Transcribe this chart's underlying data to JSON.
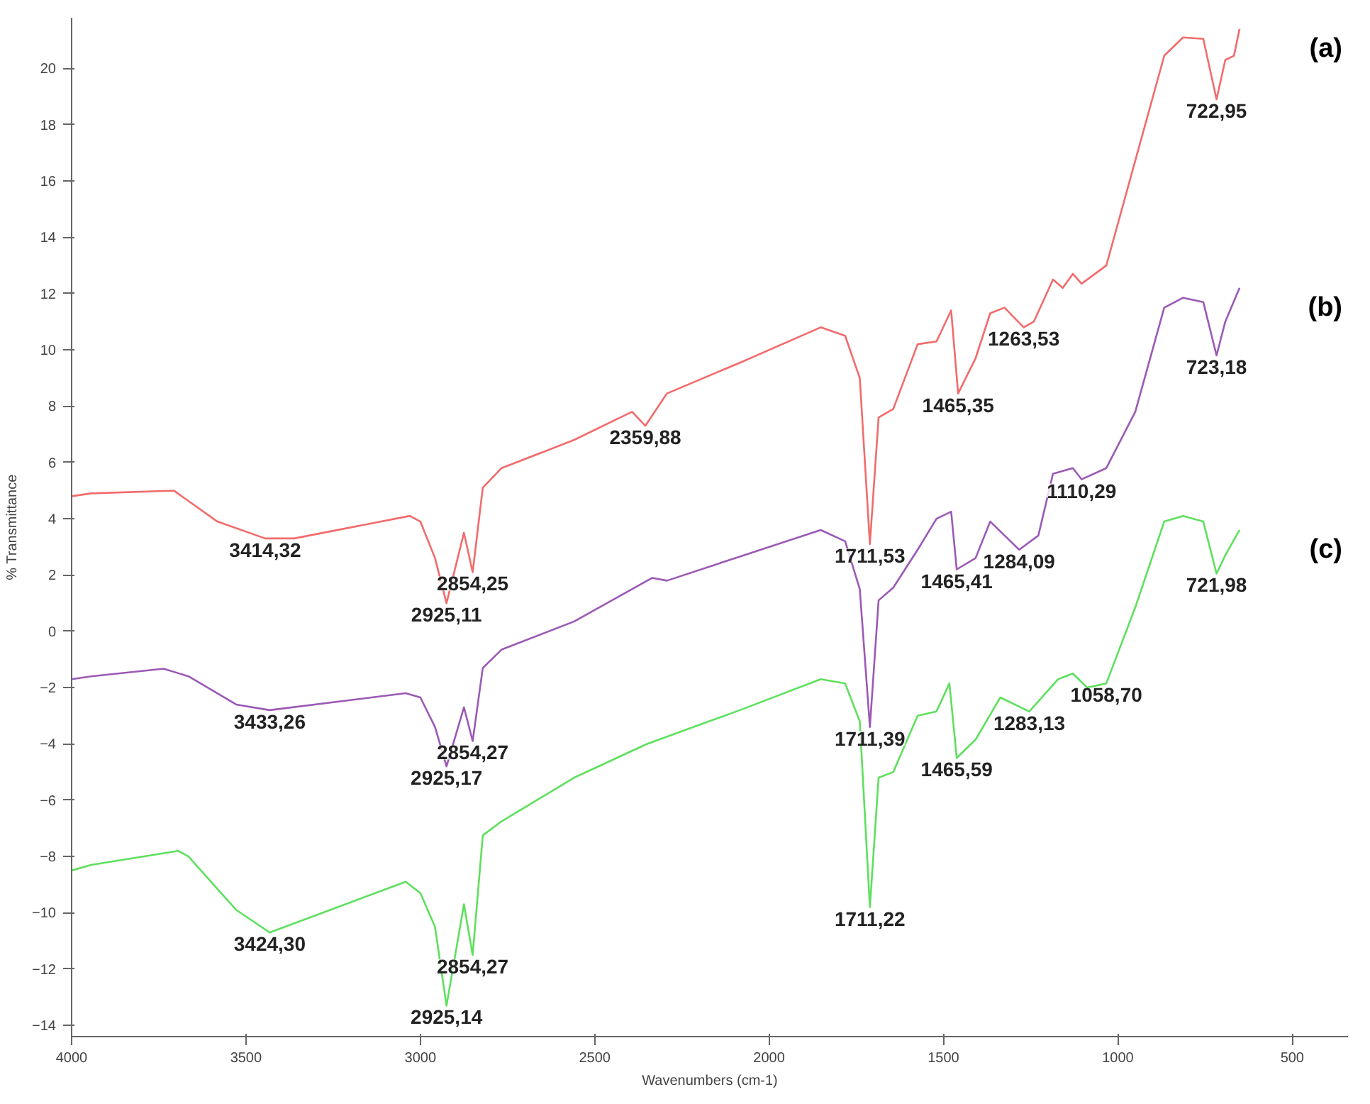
{
  "chart_data": {
    "type": "line",
    "xlabel": "Wavenumbers (cm-1)",
    "ylabel": "% Transmittance",
    "xlim": [
      4000,
      340
    ],
    "ylim": [
      -14.4,
      21.8
    ],
    "xticks": [
      4000,
      3500,
      3000,
      2500,
      2000,
      1500,
      1000,
      500
    ],
    "yticks": [
      -14,
      -12,
      -10,
      -8,
      -6,
      -4,
      -2,
      0,
      2,
      4,
      6,
      8,
      10,
      12,
      14,
      16,
      18,
      20
    ],
    "grid": false,
    "legend": false,
    "line_style": "solid",
    "series": [
      {
        "name": "(a)",
        "color": "#f26b6b",
        "x": [
          4000,
          3944,
          3707,
          3582,
          3445,
          3362,
          3030,
          3000,
          2958,
          2925,
          2875,
          2850,
          2821,
          2767,
          2559,
          2393,
          2355,
          2293,
          2073,
          1852,
          1782,
          1740,
          1711,
          1686,
          1644,
          1574,
          1520,
          1478,
          1458,
          1408,
          1366,
          1325,
          1270,
          1241,
          1186,
          1158,
          1129,
          1104,
          1033,
          867,
          813,
          755,
          717,
          692,
          667,
          651
        ],
        "values": [
          4.8,
          4.9,
          5.0,
          3.9,
          3.3,
          3.3,
          4.1,
          3.9,
          2.6,
          1.0,
          3.5,
          2.1,
          5.1,
          5.8,
          6.8,
          7.8,
          7.3,
          8.45,
          9.6,
          10.8,
          10.5,
          9.0,
          3.1,
          7.6,
          7.9,
          10.2,
          10.3,
          11.4,
          8.45,
          9.7,
          11.3,
          11.5,
          10.8,
          11.0,
          12.5,
          12.2,
          12.7,
          12.35,
          13.0,
          20.45,
          21.1,
          21.05,
          18.9,
          20.3,
          20.45,
          21.4
        ]
      },
      {
        "name": "(b)",
        "color": "#9b59b6",
        "x": [
          4000,
          3944,
          3736,
          3665,
          3528,
          3432,
          3042,
          3000,
          2958,
          2925,
          2875,
          2850,
          2821,
          2767,
          2559,
          2364,
          2335,
          2293,
          2073,
          1852,
          1782,
          1740,
          1711,
          1686,
          1644,
          1574,
          1520,
          1478,
          1462,
          1408,
          1366,
          1283,
          1228,
          1186,
          1129,
          1104,
          1033,
          950,
          867,
          813,
          755,
          717,
          692,
          651
        ],
        "values": [
          -1.7,
          -1.6,
          -1.33,
          -1.6,
          -2.6,
          -2.8,
          -2.2,
          -2.35,
          -3.4,
          -4.8,
          -2.7,
          -3.9,
          -1.3,
          -0.65,
          0.35,
          1.7,
          1.9,
          1.8,
          2.7,
          3.6,
          3.2,
          1.5,
          -3.4,
          1.1,
          1.55,
          2.9,
          4.0,
          4.25,
          2.2,
          2.6,
          3.9,
          2.9,
          3.4,
          5.6,
          5.8,
          5.4,
          5.8,
          7.8,
          11.5,
          11.85,
          11.7,
          9.8,
          11.0,
          12.2
        ]
      },
      {
        "name": "(c)",
        "color": "#5ee05e",
        "x": [
          4000,
          3944,
          3694,
          3665,
          3528,
          3432,
          3042,
          3000,
          2958,
          2925,
          2875,
          2850,
          2821,
          2767,
          2559,
          2350,
          2073,
          1852,
          1782,
          1740,
          1711,
          1686,
          1644,
          1574,
          1520,
          1483,
          1462,
          1408,
          1337,
          1254,
          1171,
          1129,
          1088,
          1033,
          950,
          867,
          813,
          755,
          717,
          692,
          651
        ],
        "values": [
          -8.5,
          -8.3,
          -7.8,
          -8.0,
          -9.9,
          -10.7,
          -8.9,
          -9.3,
          -10.5,
          -13.3,
          -9.7,
          -11.5,
          -7.25,
          -6.75,
          -5.2,
          -4.0,
          -2.75,
          -1.7,
          -1.85,
          -3.2,
          -9.8,
          -5.2,
          -5.0,
          -3.0,
          -2.85,
          -1.85,
          -4.5,
          -3.85,
          -2.35,
          -2.85,
          -1.7,
          -1.5,
          -2.0,
          -1.85,
          0.85,
          3.9,
          4.1,
          3.9,
          2.05,
          2.7,
          3.6
        ]
      }
    ],
    "annotations": [
      {
        "text": "3414,32",
        "x": 3445,
        "y": 3.3
      },
      {
        "text": "2925,11",
        "x": 2925,
        "y": 1.0
      },
      {
        "text": "2854,25",
        "x": 2850,
        "y": 2.1
      },
      {
        "text": "2359,88",
        "x": 2355,
        "y": 7.3
      },
      {
        "text": "1711,53",
        "x": 1711,
        "y": 3.1
      },
      {
        "text": "1465,35",
        "x": 1458,
        "y": 8.45
      },
      {
        "text": "1263,53",
        "x": 1270,
        "y": 10.8
      },
      {
        "text": "722,95",
        "x": 717,
        "y": 18.9
      },
      {
        "text": "3433,26",
        "x": 3432,
        "y": -2.8
      },
      {
        "text": "2925,17",
        "x": 2925,
        "y": -4.8
      },
      {
        "text": "2854,27",
        "x": 2850,
        "y": -3.9
      },
      {
        "text": "1711,39",
        "x": 1711,
        "y": -3.4
      },
      {
        "text": "1465,41",
        "x": 1462,
        "y": 2.2
      },
      {
        "text": "1284,09",
        "x": 1283,
        "y": 2.9
      },
      {
        "text": "1110,29",
        "x": 1104,
        "y": 5.4
      },
      {
        "text": "723,18",
        "x": 717,
        "y": 9.8
      },
      {
        "text": "3424,30",
        "x": 3432,
        "y": -10.7
      },
      {
        "text": "2925,14",
        "x": 2925,
        "y": -13.3
      },
      {
        "text": "2854,27",
        "x": 2850,
        "y": -11.5
      },
      {
        "text": "1711,22",
        "x": 1711,
        "y": -9.8
      },
      {
        "text": "1465,59",
        "x": 1462,
        "y": -4.5
      },
      {
        "text": "1283,13",
        "x": 1254,
        "y": -2.85
      },
      {
        "text": "1058,70",
        "x": 1033,
        "y": -1.85
      },
      {
        "text": "721,98",
        "x": 717,
        "y": 2.05
      }
    ]
  }
}
